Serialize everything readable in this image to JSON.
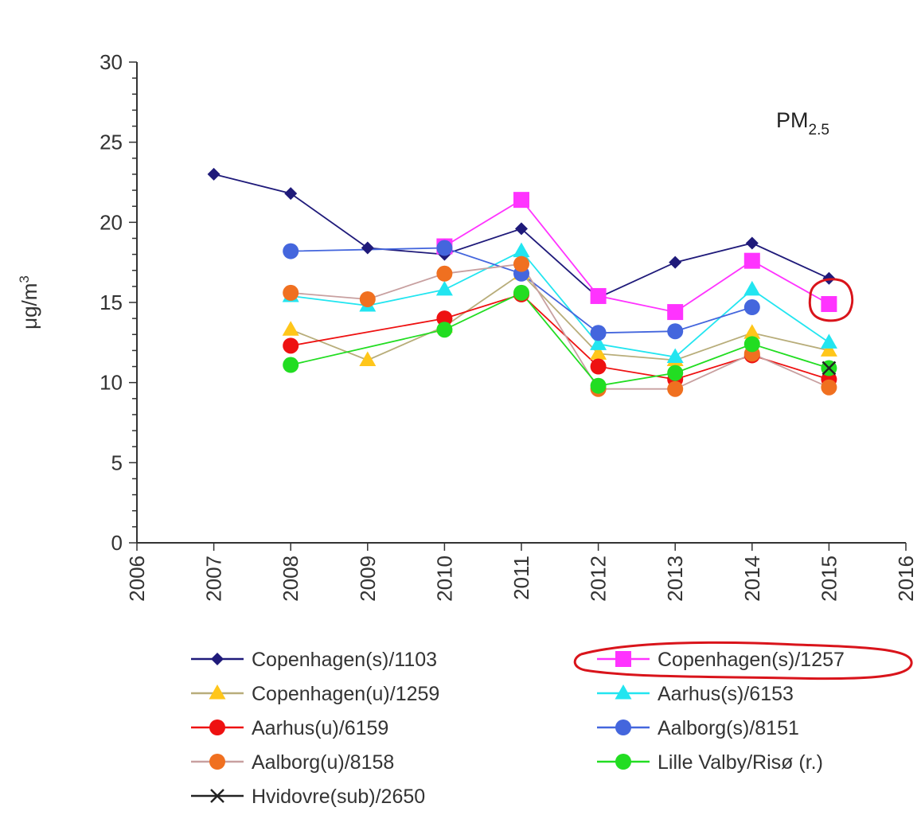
{
  "chart_data": {
    "type": "line",
    "annotation": {
      "main": "PM",
      "sub": "2.5"
    },
    "ylabel": "μg/m",
    "ylabel_sup": "3",
    "xlim": [
      2006,
      2016
    ],
    "ylim": [
      0,
      30
    ],
    "x_ticks": [
      "2006",
      "2007",
      "2008",
      "2009",
      "2010",
      "2011",
      "2012",
      "2013",
      "2014",
      "2015",
      "2016"
    ],
    "y_ticks": [
      "0",
      "5",
      "10",
      "15",
      "20",
      "25",
      "30"
    ],
    "grid": false,
    "legend_position": "bottom",
    "series": [
      {
        "name": "Copenhagen(s)/1103",
        "color": "#1f1a7a",
        "marker": "diamond",
        "points": [
          [
            2007,
            23.0
          ],
          [
            2008,
            21.8
          ],
          [
            2009,
            18.4
          ],
          [
            2010,
            18.0
          ],
          [
            2011,
            19.6
          ],
          [
            2012,
            15.3
          ],
          [
            2013,
            17.5
          ],
          [
            2014,
            18.7
          ],
          [
            2015,
            16.5
          ]
        ]
      },
      {
        "name": "Copenhagen(s)/1257",
        "color": "#ff33ff",
        "marker": "square",
        "points": [
          [
            2010,
            18.5
          ],
          [
            2011,
            21.4
          ],
          [
            2012,
            15.4
          ],
          [
            2013,
            14.4
          ],
          [
            2014,
            17.6
          ],
          [
            2015,
            14.9
          ]
        ]
      },
      {
        "name": "Copenhagen(u)/1259",
        "color": "#ffc61a",
        "line_color": "#b8ad7a",
        "marker": "triangle",
        "points": [
          [
            2008,
            13.3
          ],
          [
            2009,
            11.4
          ],
          [
            2010,
            13.5
          ],
          [
            2011,
            16.8
          ],
          [
            2012,
            11.8
          ],
          [
            2013,
            11.4
          ],
          [
            2014,
            13.1
          ],
          [
            2015,
            12.0
          ]
        ]
      },
      {
        "name": "Aarhus(s)/6153",
        "color": "#22e5f0",
        "marker": "triangle",
        "points": [
          [
            2008,
            15.4
          ],
          [
            2009,
            14.8
          ],
          [
            2010,
            15.8
          ],
          [
            2011,
            18.2
          ],
          [
            2012,
            12.4
          ],
          [
            2013,
            11.6
          ],
          [
            2014,
            15.8
          ],
          [
            2015,
            12.5
          ]
        ]
      },
      {
        "name": "Aarhus(u)/6159",
        "color": "#ee1111",
        "marker": "circle",
        "points": [
          [
            2008,
            12.3
          ],
          [
            2010,
            14.0
          ],
          [
            2011,
            15.5
          ],
          [
            2012,
            11.0
          ],
          [
            2013,
            10.2
          ],
          [
            2014,
            11.7
          ],
          [
            2015,
            10.2
          ]
        ]
      },
      {
        "name": "Aalborg(s)/8151",
        "color": "#4466dd",
        "marker": "circle",
        "points": [
          [
            2008,
            18.2
          ],
          [
            2010,
            18.4
          ],
          [
            2011,
            16.8
          ],
          [
            2012,
            13.1
          ],
          [
            2013,
            13.2
          ],
          [
            2014,
            14.7
          ]
        ]
      },
      {
        "name": "Aalborg(u)/8158",
        "color": "#f07020",
        "line_color": "#c8a0a0",
        "marker": "circle",
        "points": [
          [
            2008,
            15.6
          ],
          [
            2009,
            15.2
          ],
          [
            2010,
            16.8
          ],
          [
            2011,
            17.4
          ],
          [
            2012,
            9.6
          ],
          [
            2013,
            9.6
          ],
          [
            2014,
            11.8
          ],
          [
            2015,
            9.7
          ]
        ]
      },
      {
        "name": "Lille Valby/Risø (r.)",
        "color": "#22dd22",
        "marker": "circle",
        "points": [
          [
            2008,
            11.1
          ],
          [
            2010,
            13.3
          ],
          [
            2011,
            15.6
          ],
          [
            2012,
            9.8
          ],
          [
            2013,
            10.6
          ],
          [
            2014,
            12.4
          ],
          [
            2015,
            10.9
          ]
        ]
      },
      {
        "name": "Hvidovre(sub)/2650",
        "color": "#222222",
        "marker": "x",
        "points": [
          [
            2015,
            10.9
          ]
        ]
      }
    ]
  }
}
